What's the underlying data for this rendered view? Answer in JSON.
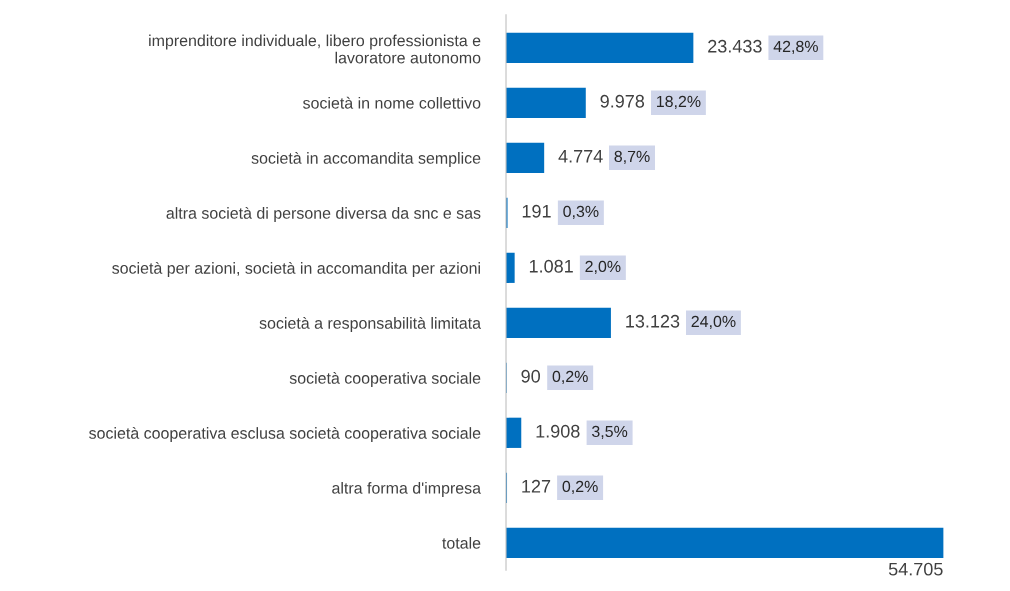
{
  "chart_data": {
    "type": "bar",
    "orientation": "horizontal",
    "categories": [
      "imprenditore individuale, libero professionista e\nlavoratore autonomo",
      "società in nome collettivo",
      "società in accomandita semplice",
      "altra società di persone diversa da snc e sas",
      "società per azioni, società in accomandita per azioni",
      "società a responsabilità limitata",
      "società cooperativa sociale",
      "società cooperativa esclusa società cooperativa sociale",
      "altra forma d'impresa",
      "totale"
    ],
    "values": [
      23433,
      9978,
      4774,
      191,
      1081,
      13123,
      90,
      1908,
      127,
      54705
    ],
    "value_labels": [
      "23.433",
      "9.978",
      "4.774",
      "191",
      "1.081",
      "13.123",
      "90",
      "1.908",
      "127",
      "54.705"
    ],
    "color": "#0070c0",
    "annotations": [
      "42,8%",
      "18,2%",
      "8,7%",
      "0,3%",
      "2,0%",
      "24,0%",
      "0,2%",
      "3,5%",
      "0,2%"
    ],
    "grid": false,
    "legend": false
  }
}
